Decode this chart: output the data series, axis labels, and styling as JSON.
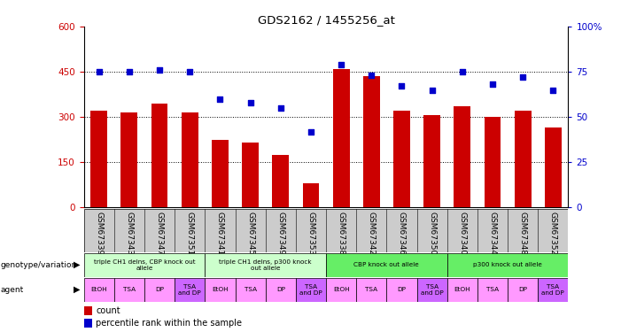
{
  "title": "GDS2162 / 1455256_at",
  "samples": [
    "GSM67339",
    "GSM67343",
    "GSM67347",
    "GSM67351",
    "GSM67341",
    "GSM67345",
    "GSM67349",
    "GSM67353",
    "GSM67338",
    "GSM67342",
    "GSM67346",
    "GSM67350",
    "GSM67340",
    "GSM67344",
    "GSM67348",
    "GSM67352"
  ],
  "bar_values": [
    320,
    315,
    345,
    315,
    225,
    215,
    175,
    80,
    460,
    435,
    320,
    305,
    335,
    300,
    320,
    265
  ],
  "dot_values": [
    75,
    75,
    76,
    75,
    60,
    58,
    55,
    42,
    79,
    73,
    67,
    65,
    75,
    68,
    72,
    65
  ],
  "bar_color": "#cc0000",
  "dot_color": "#0000cc",
  "left_ylim": [
    0,
    600
  ],
  "right_ylim": [
    0,
    100
  ],
  "left_yticks": [
    0,
    150,
    300,
    450,
    600
  ],
  "right_yticks": [
    0,
    25,
    50,
    75,
    100
  ],
  "right_yticklabels": [
    "0",
    "25",
    "50",
    "75",
    "100%"
  ],
  "hlines": [
    150,
    300,
    450
  ],
  "genotype_groups": [
    {
      "label": "triple CH1 delns, CBP knock out\nallele",
      "start": 0,
      "end": 4,
      "color": "#ccffcc"
    },
    {
      "label": "triple CH1 delns, p300 knock\nout allele",
      "start": 4,
      "end": 8,
      "color": "#ccffcc"
    },
    {
      "label": "CBP knock out allele",
      "start": 8,
      "end": 12,
      "color": "#66ee66"
    },
    {
      "label": "p300 knock out allele",
      "start": 12,
      "end": 16,
      "color": "#66ee66"
    }
  ],
  "agent_labels": [
    "EtOH",
    "TSA",
    "DP",
    "TSA\nand DP",
    "EtOH",
    "TSA",
    "DP",
    "TSA\nand DP",
    "EtOH",
    "TSA",
    "DP",
    "TSA\nand DP",
    "EtOH",
    "TSA",
    "DP",
    "TSA\nand DP"
  ],
  "agent_colors": [
    "#ff99ff",
    "#ff99ff",
    "#ff99ff",
    "#cc66ff",
    "#ff99ff",
    "#ff99ff",
    "#ff99ff",
    "#cc66ff",
    "#ff99ff",
    "#ff99ff",
    "#ff99ff",
    "#cc66ff",
    "#ff99ff",
    "#ff99ff",
    "#ff99ff",
    "#cc66ff"
  ],
  "legend_count_color": "#cc0000",
  "legend_dot_color": "#0000cc",
  "genotype_label": "genotype/variation",
  "agent_label": "agent",
  "background_color": "#ffffff",
  "tick_label_fontsize": 6.5,
  "bar_width": 0.55,
  "sample_bg_color": "#cccccc"
}
